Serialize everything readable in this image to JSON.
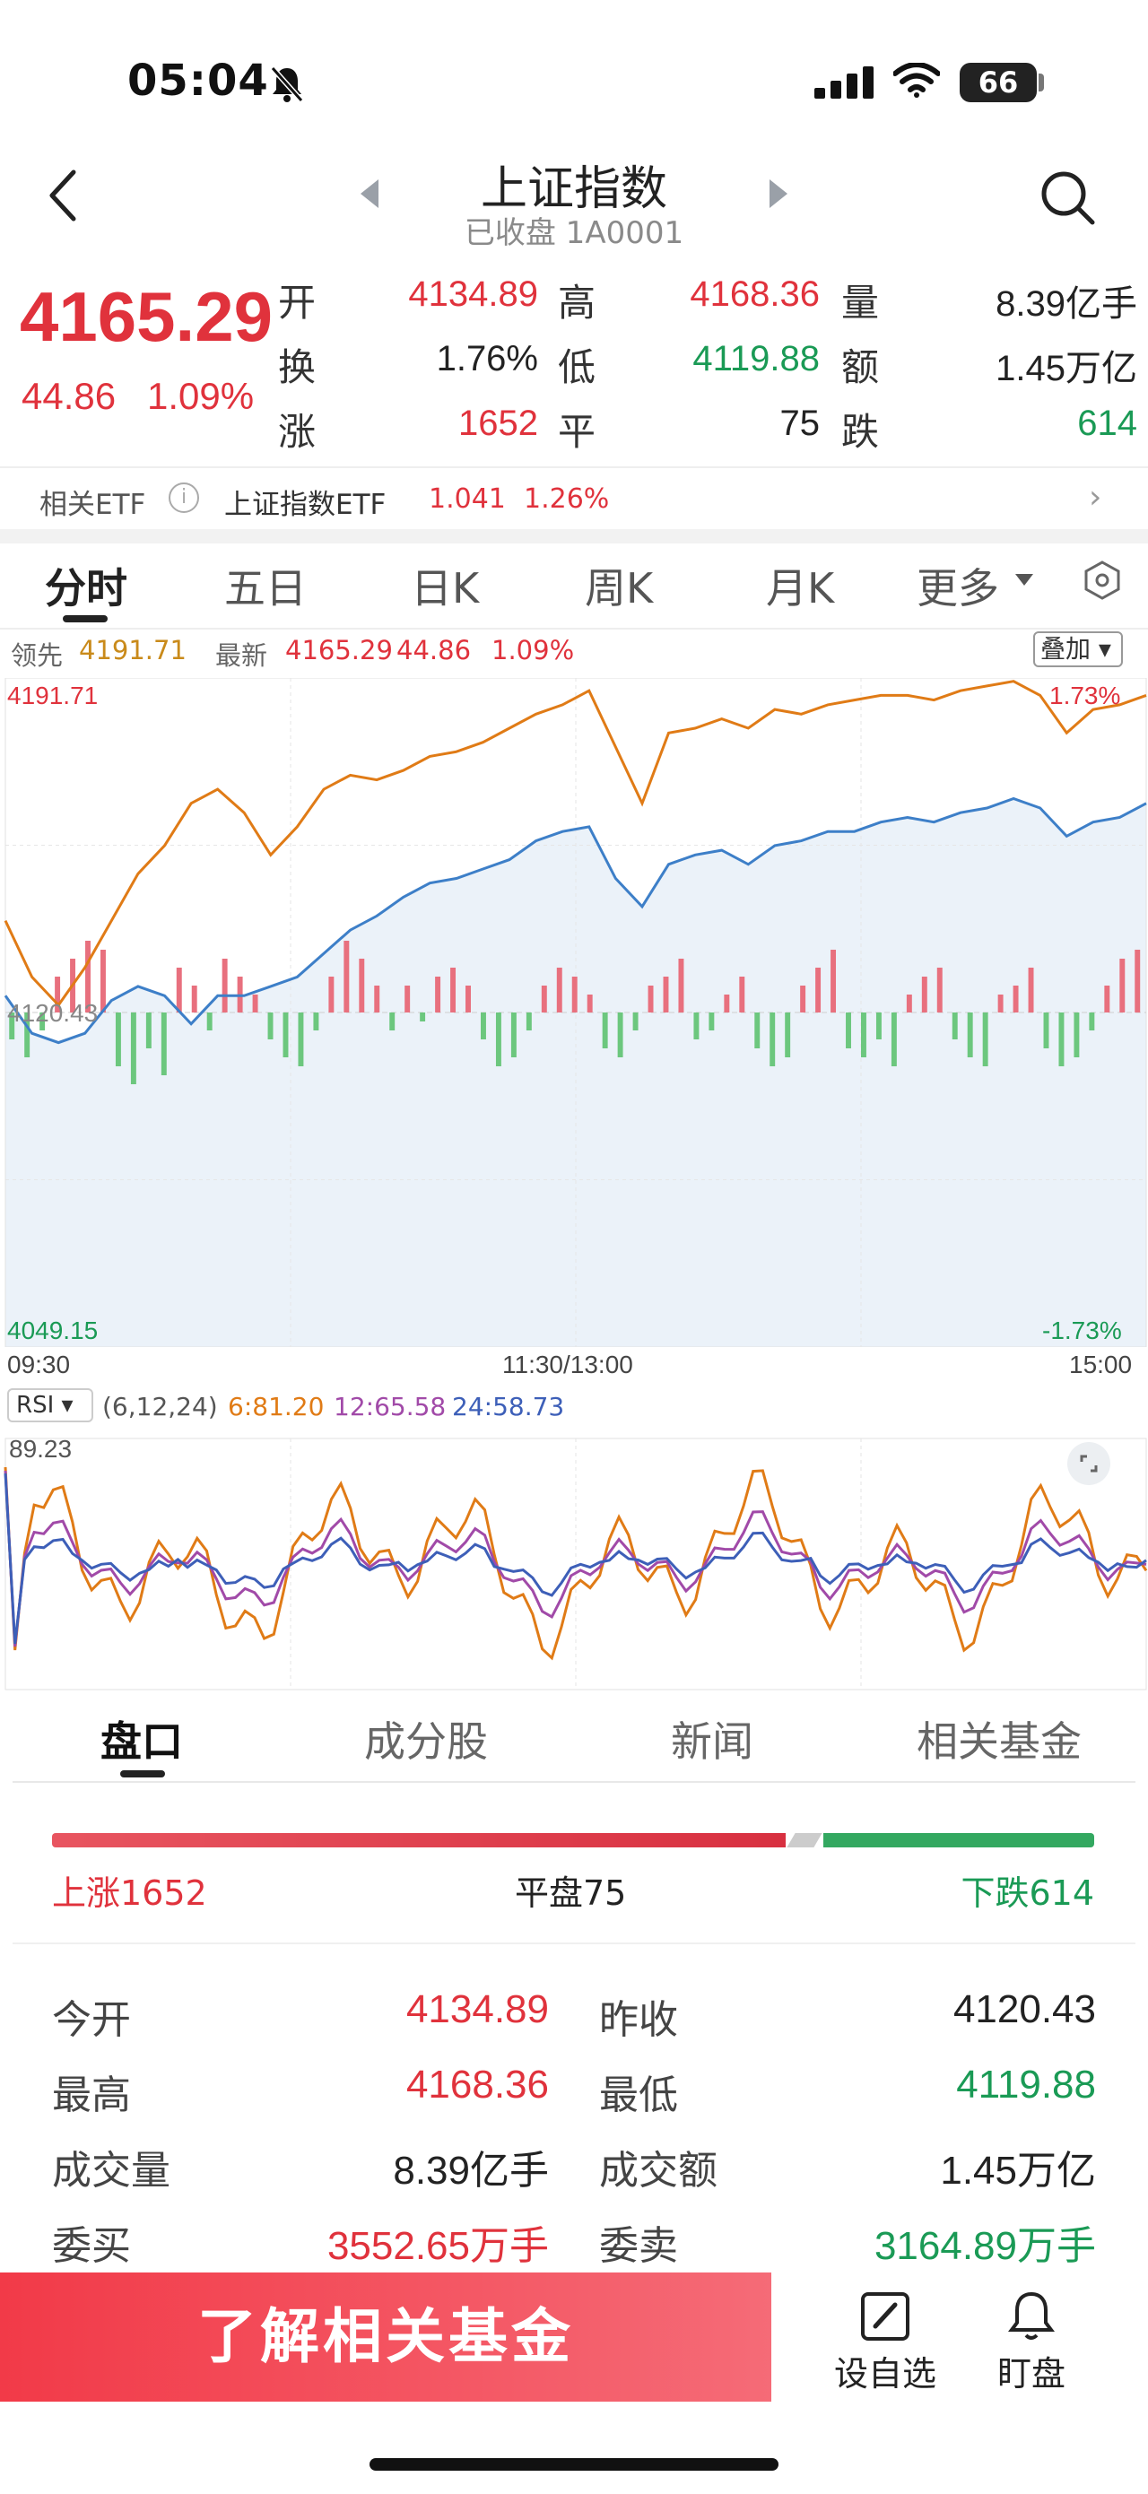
{
  "status": {
    "time": "05:04",
    "battery": "66"
  },
  "header": {
    "title": "上证指数",
    "subtitle": "已收盘 1A0001"
  },
  "quote": {
    "price": "4165.29",
    "change": "44.86",
    "change_pct": "1.09%",
    "rows": [
      [
        {
          "label": "开",
          "value": "4134.89",
          "color": "red"
        },
        {
          "label": "高",
          "value": "4168.36",
          "color": "red"
        },
        {
          "label": "量",
          "value": "8.39亿手",
          "color": "dark"
        }
      ],
      [
        {
          "label": "换",
          "value": "1.76%",
          "color": "dark"
        },
        {
          "label": "低",
          "value": "4119.88",
          "color": "green"
        },
        {
          "label": "额",
          "value": "1.45万亿",
          "color": "dark"
        }
      ],
      [
        {
          "label": "涨",
          "value": "1652",
          "color": "red"
        },
        {
          "label": "平",
          "value": "75",
          "color": "dark"
        },
        {
          "label": "跌",
          "value": "614",
          "color": "green"
        }
      ]
    ]
  },
  "etf": {
    "label": "相关ETF",
    "name": "上证指数ETF",
    "price": "1.041",
    "pct": "1.26%"
  },
  "chart_tabs": [
    "分时",
    "五日",
    "日K",
    "周K",
    "月K",
    "更多"
  ],
  "legend": {
    "lead_label": "领先",
    "lead_value": "4191.71",
    "latest_label": "最新",
    "latest_value": "4165.29",
    "latest_change": "44.86",
    "latest_pct": "1.09%",
    "overlay": "叠加"
  },
  "chart_data": {
    "type": "line",
    "y_axis_left": {
      "top": "4191.71",
      "mid": "4120.43",
      "bottom": "4049.15"
    },
    "y_axis_right": {
      "top": "1.73%",
      "bottom": "-1.73%"
    },
    "x_ticks": [
      "09:30",
      "11:30/13:00",
      "15:00"
    ],
    "ylim": [
      4049.15,
      4191.71
    ],
    "prev_close": 4120.43,
    "series": [
      {
        "name": "领先",
        "color": "#e07b16",
        "values": [
          4140,
          4128,
          4122,
          4130,
          4140,
          4150,
          4156,
          4165,
          4168,
          4163,
          4154,
          4160,
          4168,
          4171,
          4170,
          4172,
          4175,
          4176,
          4178,
          4181,
          4184,
          4186,
          4189,
          4177,
          4165,
          4180,
          4181,
          4183,
          4181,
          4185,
          4184,
          4186,
          4187,
          4188,
          4188,
          4187,
          4189,
          4190,
          4191,
          4188,
          4180,
          4185,
          4186,
          4188
        ]
      },
      {
        "name": "最新",
        "color": "#3d7fc8",
        "values": [
          4124,
          4116,
          4114,
          4116,
          4123,
          4126,
          4124,
          4118,
          4124,
          4124,
          4126,
          4128,
          4133,
          4138,
          4141,
          4145,
          4148,
          4149,
          4151,
          4153,
          4157,
          4159,
          4160,
          4149,
          4143,
          4152,
          4154,
          4155,
          4152,
          4156,
          4157,
          4159,
          4159,
          4161,
          4162,
          4161,
          4163,
          4164,
          4166,
          4164,
          4158,
          4161,
          4162,
          4165
        ]
      }
    ],
    "volume_bars": [
      -3,
      -5,
      -2,
      4,
      6,
      8,
      7,
      -6,
      -8,
      -4,
      -7,
      5,
      3,
      -2,
      6,
      4,
      2,
      -3,
      -5,
      -6,
      -2,
      4,
      8,
      6,
      3,
      -2,
      3,
      -1,
      4,
      5,
      3,
      -3,
      -6,
      -5,
      -2,
      3,
      5,
      4,
      2,
      -4,
      -5,
      -2,
      3,
      4,
      6,
      -3,
      -2,
      2,
      4,
      -4,
      -6,
      -5,
      3,
      5,
      7,
      -4,
      -5,
      -3,
      -6,
      2,
      4,
      5,
      -3,
      -5,
      -6,
      2,
      3,
      5,
      -4,
      -6,
      -5,
      -2,
      3,
      6,
      7
    ]
  },
  "rsi": {
    "label": "RSI",
    "params": "(6,12,24)",
    "rsi6": "6:81.20",
    "rsi12": "12:65.58",
    "rsi24": "24:58.73",
    "top_label": "89.23",
    "colors": {
      "rsi6": "#e07b16",
      "rsi12": "#a14aa8",
      "rsi24": "#3d5fb8"
    }
  },
  "lower_tabs": [
    "盘口",
    "成分股",
    "新闻",
    "相关基金"
  ],
  "breadth": {
    "rise": "上涨1652",
    "flat": "平盘75",
    "fall": "下跌614",
    "rise_ratio": 0.706,
    "fall_ratio": 0.262
  },
  "stats": [
    [
      {
        "label": "今开",
        "value": "4134.89",
        "color": "red"
      },
      {
        "label": "昨收",
        "value": "4120.43",
        "color": "dark"
      }
    ],
    [
      {
        "label": "最高",
        "value": "4168.36",
        "color": "red"
      },
      {
        "label": "最低",
        "value": "4119.88",
        "color": "green"
      }
    ],
    [
      {
        "label": "成交量",
        "value": "8.39亿手",
        "color": "dark"
      },
      {
        "label": "成交额",
        "value": "1.45万亿",
        "color": "dark"
      }
    ],
    [
      {
        "label": "委买",
        "value": "3552.65万手",
        "color": "red"
      },
      {
        "label": "委卖",
        "value": "3164.89万手",
        "color": "green"
      }
    ]
  ],
  "actions": {
    "cta": "了解相关基金",
    "watchlist": "设自选",
    "monitor": "盯盘"
  }
}
